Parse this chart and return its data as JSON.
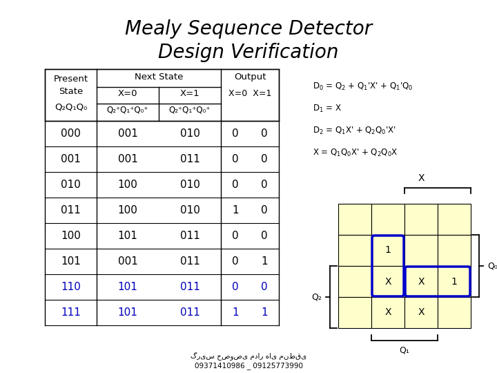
{
  "title_line1": "Mealy Sequence Detector",
  "title_line2": "Design Verification",
  "title_fontsize": 20,
  "bg_color": "#ffffff",
  "table_rows": [
    [
      "000",
      "001",
      "010",
      "0",
      "0"
    ],
    [
      "001",
      "001",
      "011",
      "0",
      "0"
    ],
    [
      "010",
      "100",
      "010",
      "0",
      "0"
    ],
    [
      "011",
      "100",
      "010",
      "1",
      "0"
    ],
    [
      "100",
      "101",
      "011",
      "0",
      "0"
    ],
    [
      "101",
      "001",
      "011",
      "0",
      "1"
    ],
    [
      "110",
      "101",
      "011",
      "0",
      "0"
    ],
    [
      "111",
      "101",
      "011",
      "1",
      "1"
    ]
  ],
  "blue_rows": [
    6,
    7
  ],
  "kmap_content": [
    [
      "",
      "",
      "",
      ""
    ],
    [
      "",
      "1",
      "",
      ""
    ],
    [
      "",
      "X",
      "X",
      "1"
    ],
    [
      "",
      "X",
      "X",
      ""
    ]
  ],
  "kmap_cell_color": "#ffffcc",
  "footer_line1": "گریس خصوصی مدار های منطقی",
  "footer_line2": "09371410986 _ 09125773990"
}
